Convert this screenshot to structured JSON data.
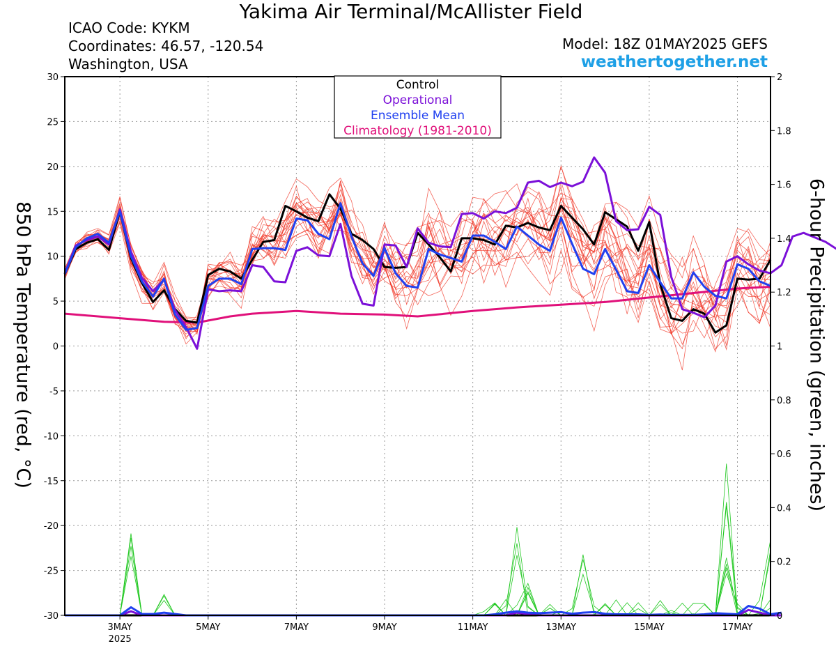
{
  "header": {
    "title": "Yakima Air Terminal/McAllister Field",
    "icao": "ICAO Code: KYKM",
    "coordinates": "Coordinates: 46.57, -120.54",
    "region": "Washington, USA",
    "model": "Model: 18Z 01MAY2025 GEFS",
    "website": "weathertogether.net"
  },
  "colors": {
    "control": "#000000",
    "operational": "#7b10d8",
    "ensemble_mean": "#2040f0",
    "climatology": "#e0107a",
    "members_temp": "#f03020",
    "members_precip": "#20c820",
    "website": "#1ea0e6"
  },
  "chart_data": {
    "type": "line",
    "ylabel": "850 hPa Temperature (red, °C)",
    "y2label": "6-hour Precipitation (green, inches)",
    "ylim": [
      -30,
      30
    ],
    "y2lim": [
      0,
      2
    ],
    "yticks": [
      30,
      25,
      20,
      15,
      10,
      5,
      0,
      -5,
      -10,
      -15,
      -20,
      -25,
      -30
    ],
    "y2ticks": [
      "2",
      "1.8",
      "1.6",
      "1.4",
      "1.2",
      "1",
      "0.8",
      "0.6",
      "0.4",
      "0.2",
      "0"
    ],
    "x_days_range": [
      1.75,
      17.75
    ],
    "xticks": [
      {
        "day": 3,
        "label": "3MAY",
        "sub": "2025"
      },
      {
        "day": 5,
        "label": "5MAY"
      },
      {
        "day": 7,
        "label": "7MAY"
      },
      {
        "day": 9,
        "label": "9MAY"
      },
      {
        "day": 11,
        "label": "11MAY"
      },
      {
        "day": 13,
        "label": "13MAY"
      },
      {
        "day": 15,
        "label": "15MAY"
      },
      {
        "day": 17,
        "label": "17MAY"
      }
    ],
    "grid": true,
    "legend": {
      "position": "top-center",
      "entries": [
        {
          "label": "Control",
          "color": "#000000"
        },
        {
          "label": "Operational",
          "color": "#7b10d8"
        },
        {
          "label": "Ensemble Mean",
          "color": "#2040f0"
        },
        {
          "label": "Climatology (1981-2010)",
          "color": "#e0107a"
        }
      ]
    },
    "series": [
      {
        "name": "Control",
        "unit": "temp",
        "x_start": 1.75,
        "x_step": 0.25,
        "values": [
          8,
          10.8,
          11.5,
          11.9,
          10.7,
          15,
          9.8,
          7,
          4.9,
          6.2,
          4.1,
          2.8,
          2.6,
          7.9,
          8.6,
          8.3,
          7.5,
          9.6,
          11.6,
          11.8,
          15.6,
          15,
          14.3,
          13.9,
          16.9,
          15.3,
          12.5,
          11.8,
          10.8,
          8.8,
          8.7,
          8.8,
          12.6,
          11.3,
          9.9,
          8.3,
          12,
          12,
          11.8,
          11.3,
          13.4,
          13.2,
          13.7,
          13.2,
          12.9,
          15.6,
          14.3,
          13,
          11.3,
          14.9,
          14.1,
          13.3,
          10.6,
          13.8,
          6.9,
          3.1,
          2.8,
          4.1,
          3.6,
          1.5,
          2.3,
          7.5,
          7.4,
          7.5,
          9.6
        ]
      },
      {
        "name": "Operational",
        "unit": "temp",
        "x_start": 1.75,
        "x_step": 0.25,
        "values": [
          8.1,
          11.2,
          11.8,
          12.2,
          11.3,
          15.2,
          10.5,
          7.6,
          6.1,
          7.4,
          4,
          2.1,
          -0.3,
          6.3,
          6.1,
          6.2,
          6.1,
          9,
          8.8,
          7.2,
          7.1,
          10.6,
          11,
          10.1,
          10,
          13.6,
          7.8,
          4.7,
          4.5,
          11.3,
          11.2,
          8.8,
          13.1,
          11.5,
          11.1,
          11,
          14.7,
          14.8,
          14.2,
          15,
          14.8,
          15.4,
          18.2,
          18.4,
          17.7,
          18.2,
          17.8,
          18.3,
          21,
          19.3,
          13.9,
          12.9,
          13,
          15.5,
          14.6,
          7.7,
          4.1,
          3.7,
          3.2,
          4.5,
          9.4,
          10,
          9.1,
          8.4,
          8.1,
          9,
          12.2,
          12.6,
          12.1,
          11.6,
          10.8,
          10.8,
          14.2,
          13.4,
          11.3,
          10.6,
          10.7,
          11.4
        ]
      },
      {
        "name": "Ensemble Mean",
        "unit": "temp",
        "x_start": 1.75,
        "x_step": 0.25,
        "values": [
          8,
          11,
          12,
          12.5,
          11.5,
          15,
          10,
          7.2,
          5.5,
          7.5,
          3.5,
          1.8,
          2,
          6.7,
          7.5,
          7.5,
          6.9,
          10.8,
          10.9,
          10.9,
          10.7,
          14.2,
          14,
          12.5,
          11.9,
          15.9,
          12.2,
          9.2,
          7.8,
          10.9,
          8.1,
          6.7,
          6.5,
          10.8,
          10.2,
          9.8,
          9.4,
          12.3,
          12.3,
          11.6,
          10.8,
          13.3,
          12.3,
          11.3,
          10.6,
          14.3,
          11.4,
          8.6,
          8,
          10.8,
          8.5,
          6.1,
          5.9,
          9,
          7.1,
          5.3,
          5.3,
          8.2,
          6.6,
          5.6,
          5.3,
          9.1,
          8.6,
          7.2,
          6.7
        ]
      },
      {
        "name": "Climatology (1981-2010)",
        "unit": "temp",
        "points": [
          [
            1.75,
            3.6
          ],
          [
            3,
            3.1
          ],
          [
            4,
            2.7
          ],
          [
            4.75,
            2.6
          ],
          [
            5.5,
            3.3
          ],
          [
            6,
            3.6
          ],
          [
            7,
            3.9
          ],
          [
            8,
            3.6
          ],
          [
            9,
            3.5
          ],
          [
            9.75,
            3.3
          ],
          [
            11,
            3.9
          ],
          [
            12,
            4.3
          ],
          [
            13,
            4.6
          ],
          [
            14,
            4.9
          ],
          [
            15,
            5.4
          ],
          [
            16,
            5.9
          ],
          [
            17,
            6.4
          ],
          [
            17.75,
            6.6
          ]
        ]
      },
      {
        "name": "Control",
        "unit": "precip",
        "x_start": 1.75,
        "x_step": 0.25,
        "values": [
          0,
          0,
          0,
          0,
          0,
          0,
          0,
          0,
          0,
          0,
          0,
          0,
          0,
          0,
          0,
          0,
          0,
          0,
          0,
          0,
          0,
          0,
          0,
          0,
          0,
          0,
          0,
          0,
          0,
          0,
          0,
          0,
          0,
          0,
          0,
          0,
          0,
          0,
          0,
          0,
          0,
          0,
          0,
          0,
          0,
          0,
          0,
          0,
          0,
          0,
          0,
          0,
          0,
          0,
          0,
          0,
          0,
          0,
          0,
          0,
          0,
          0,
          0,
          0,
          0
        ]
      },
      {
        "name": "Ensemble Mean",
        "unit": "precip",
        "x_start": 1.75,
        "x_step": 0.25,
        "values": [
          0,
          0,
          0,
          0,
          0,
          0,
          0.03,
          0.005,
          0.005,
          0.01,
          0.005,
          0,
          0,
          0,
          0,
          0,
          0,
          0,
          0,
          0,
          0,
          0,
          0,
          0,
          0,
          0,
          0,
          0,
          0,
          0,
          0,
          0,
          0,
          0,
          0,
          0,
          0,
          0,
          0,
          0.004,
          0.01,
          0.015,
          0.01,
          0.008,
          0.01,
          0.012,
          0.006,
          0.01,
          0.012,
          0.006,
          0.004,
          0.004,
          0.004,
          0.002,
          0.003,
          0.002,
          0.002,
          0.002,
          0.004,
          0.008,
          0.006,
          0.004,
          0.035,
          0.025,
          0.004,
          0.01
        ]
      },
      {
        "name": "Operational",
        "unit": "precip",
        "x_start": 1.75,
        "x_step": 0.25,
        "values": [
          0,
          0,
          0,
          0,
          0,
          0,
          0.015,
          0,
          0,
          0,
          0,
          0,
          0,
          0,
          0,
          0,
          0,
          0,
          0,
          0,
          0,
          0,
          0,
          0,
          0,
          0,
          0,
          0,
          0,
          0,
          0,
          0,
          0,
          0,
          0,
          0,
          0,
          0,
          0,
          0,
          0,
          0.01,
          0.005,
          0,
          0,
          0,
          0,
          0,
          0,
          0,
          0,
          0,
          0,
          0,
          0,
          0,
          0,
          0,
          0,
          0,
          0,
          0,
          0.02,
          0.01,
          0,
          0
        ]
      }
    ]
  }
}
